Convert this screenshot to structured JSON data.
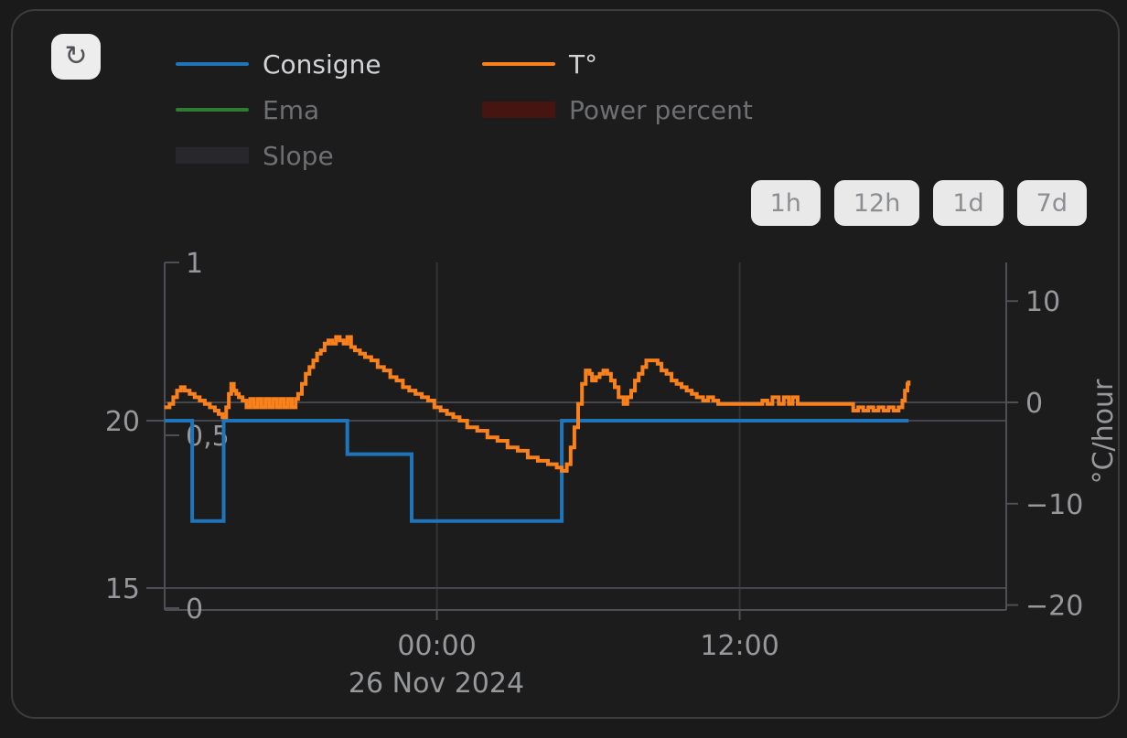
{
  "refresh": {
    "glyph": "↻"
  },
  "range_buttons": [
    "1h",
    "12h",
    "1d",
    "7d"
  ],
  "legend": {
    "columns": [
      [
        {
          "label": "Consigne",
          "marker": "line",
          "color": "#1f74ba",
          "active": true
        },
        {
          "label": "Ema",
          "marker": "line",
          "color": "#2e7d32",
          "active": false
        },
        {
          "label": "Slope",
          "marker": "box",
          "color": "#28282c",
          "active": false
        }
      ],
      [
        {
          "label": "T°",
          "marker": "line",
          "color": "#f8811c",
          "active": true
        },
        {
          "label": "Power percent",
          "marker": "box",
          "color": "#471511",
          "active": false
        }
      ]
    ]
  },
  "chart_data": {
    "type": "line",
    "title": "",
    "x_axis": {
      "unit": "hours relative to 26 Nov 2024 00:00",
      "range": [
        -10.8,
        22.6
      ],
      "ticks": [
        {
          "value": 0,
          "label": "00:00"
        },
        {
          "value": 12,
          "label": "12:00"
        }
      ],
      "date_label": "26 Nov 2024"
    },
    "y_axes": [
      {
        "id": "temperature",
        "side": "left-outer",
        "range": [
          14.3,
          24.7
        ],
        "ticks": [
          {
            "value": 20,
            "label": "20",
            "grid": true
          },
          {
            "value": 15,
            "label": "15",
            "grid": true
          }
        ]
      },
      {
        "id": "power",
        "side": "left-inner",
        "range": [
          0,
          1
        ],
        "ticks": [
          {
            "value": 1,
            "label": "1"
          },
          {
            "value": 0.5,
            "label": "0,5"
          },
          {
            "value": 0,
            "label": "0"
          }
        ]
      },
      {
        "id": "rate",
        "side": "right",
        "title": "°C/hour",
        "range": [
          -20.5,
          13.8
        ],
        "ticks": [
          {
            "value": 10,
            "label": "10"
          },
          {
            "value": 0,
            "label": "0",
            "grid": true
          },
          {
            "value": -10,
            "label": "−10"
          },
          {
            "value": -20,
            "label": "−20"
          }
        ]
      }
    ],
    "series": [
      {
        "name": "Consigne",
        "color": "#1f74ba",
        "axis": "temperature",
        "visible": true,
        "interpolation": "step-after",
        "points": [
          [
            -10.8,
            20
          ],
          [
            -9.7,
            17
          ],
          [
            -8.45,
            20
          ],
          [
            -3.55,
            19
          ],
          [
            -1.0,
            17
          ],
          [
            4.95,
            20
          ],
          [
            18.7,
            20
          ]
        ]
      },
      {
        "name": "T°",
        "color": "#f8811c",
        "axis": "temperature",
        "visible": true,
        "interpolation": "step-after",
        "points": [
          [
            -10.8,
            20.4
          ],
          [
            -10.6,
            20.5
          ],
          [
            -10.45,
            20.7
          ],
          [
            -10.3,
            20.9
          ],
          [
            -10.15,
            21.0
          ],
          [
            -10.0,
            20.9
          ],
          [
            -9.8,
            20.8
          ],
          [
            -9.6,
            20.7
          ],
          [
            -9.4,
            20.6
          ],
          [
            -9.2,
            20.5
          ],
          [
            -9.0,
            20.4
          ],
          [
            -8.8,
            20.3
          ],
          [
            -8.65,
            20.2
          ],
          [
            -8.5,
            20.1
          ],
          [
            -8.35,
            20.4
          ],
          [
            -8.25,
            20.8
          ],
          [
            -8.15,
            21.1
          ],
          [
            -8.05,
            20.9
          ],
          [
            -7.95,
            20.8
          ],
          [
            -7.85,
            20.7
          ],
          [
            -7.7,
            20.6
          ],
          [
            -7.55,
            20.4
          ],
          [
            -7.4,
            20.65
          ],
          [
            -7.25,
            20.4
          ],
          [
            -7.1,
            20.65
          ],
          [
            -6.95,
            20.4
          ],
          [
            -6.8,
            20.65
          ],
          [
            -6.65,
            20.4
          ],
          [
            -6.5,
            20.65
          ],
          [
            -6.35,
            20.4
          ],
          [
            -6.2,
            20.65
          ],
          [
            -6.05,
            20.4
          ],
          [
            -5.9,
            20.65
          ],
          [
            -5.75,
            20.4
          ],
          [
            -5.6,
            20.65
          ],
          [
            -5.5,
            20.8
          ],
          [
            -5.35,
            21.1
          ],
          [
            -5.2,
            21.4
          ],
          [
            -5.05,
            21.6
          ],
          [
            -4.9,
            21.8
          ],
          [
            -4.75,
            22.0
          ],
          [
            -4.6,
            22.1
          ],
          [
            -4.45,
            22.3
          ],
          [
            -4.3,
            22.4
          ],
          [
            -4.15,
            22.3
          ],
          [
            -4.0,
            22.5
          ],
          [
            -3.85,
            22.4
          ],
          [
            -3.7,
            22.3
          ],
          [
            -3.55,
            22.5
          ],
          [
            -3.4,
            22.2
          ],
          [
            -3.25,
            22.1
          ],
          [
            -3.05,
            22.0
          ],
          [
            -2.85,
            21.9
          ],
          [
            -2.6,
            21.8
          ],
          [
            -2.35,
            21.6
          ],
          [
            -2.1,
            21.5
          ],
          [
            -1.85,
            21.3
          ],
          [
            -1.6,
            21.2
          ],
          [
            -1.35,
            21.0
          ],
          [
            -1.1,
            20.9
          ],
          [
            -0.85,
            20.8
          ],
          [
            -0.6,
            20.7
          ],
          [
            -0.35,
            20.6
          ],
          [
            -0.1,
            20.4
          ],
          [
            0.15,
            20.3
          ],
          [
            0.4,
            20.2
          ],
          [
            0.65,
            20.1
          ],
          [
            0.9,
            20.0
          ],
          [
            1.2,
            19.8
          ],
          [
            1.6,
            19.7
          ],
          [
            2.0,
            19.5
          ],
          [
            2.4,
            19.4
          ],
          [
            2.8,
            19.2
          ],
          [
            3.2,
            19.1
          ],
          [
            3.6,
            18.9
          ],
          [
            4.0,
            18.8
          ],
          [
            4.4,
            18.7
          ],
          [
            4.75,
            18.6
          ],
          [
            4.95,
            18.5
          ],
          [
            5.15,
            18.7
          ],
          [
            5.3,
            19.2
          ],
          [
            5.45,
            19.8
          ],
          [
            5.6,
            20.5
          ],
          [
            5.75,
            21.1
          ],
          [
            5.9,
            21.5
          ],
          [
            6.05,
            21.4
          ],
          [
            6.15,
            21.2
          ],
          [
            6.3,
            21.3
          ],
          [
            6.45,
            21.4
          ],
          [
            6.6,
            21.5
          ],
          [
            6.75,
            21.4
          ],
          [
            6.9,
            21.2
          ],
          [
            7.05,
            21.0
          ],
          [
            7.2,
            20.7
          ],
          [
            7.4,
            20.5
          ],
          [
            7.55,
            20.7
          ],
          [
            7.7,
            20.9
          ],
          [
            7.85,
            21.2
          ],
          [
            8.0,
            21.4
          ],
          [
            8.15,
            21.6
          ],
          [
            8.3,
            21.8
          ],
          [
            8.6,
            21.8
          ],
          [
            8.75,
            21.7
          ],
          [
            8.9,
            21.5
          ],
          [
            9.1,
            21.4
          ],
          [
            9.3,
            21.2
          ],
          [
            9.5,
            21.1
          ],
          [
            9.7,
            21.0
          ],
          [
            9.9,
            20.9
          ],
          [
            10.1,
            20.8
          ],
          [
            10.3,
            20.7
          ],
          [
            10.55,
            20.6
          ],
          [
            10.75,
            20.7
          ],
          [
            10.95,
            20.6
          ],
          [
            11.15,
            20.5
          ],
          [
            12.9,
            20.6
          ],
          [
            13.1,
            20.5
          ],
          [
            13.3,
            20.7
          ],
          [
            13.55,
            20.5
          ],
          [
            13.75,
            20.7
          ],
          [
            13.95,
            20.5
          ],
          [
            14.1,
            20.7
          ],
          [
            14.3,
            20.5
          ],
          [
            16.5,
            20.3
          ],
          [
            16.7,
            20.4
          ],
          [
            16.9,
            20.3
          ],
          [
            17.1,
            20.4
          ],
          [
            17.3,
            20.3
          ],
          [
            17.5,
            20.4
          ],
          [
            17.7,
            20.3
          ],
          [
            17.9,
            20.4
          ],
          [
            18.1,
            20.3
          ],
          [
            18.3,
            20.4
          ],
          [
            18.45,
            20.6
          ],
          [
            18.55,
            20.9
          ],
          [
            18.65,
            21.1
          ],
          [
            18.7,
            21.2
          ]
        ]
      },
      {
        "name": "Ema",
        "color": "#2e7d32",
        "axis": "temperature",
        "visible": false,
        "points": []
      },
      {
        "name": "Power percent",
        "color": "#471511",
        "axis": "power",
        "visible": false,
        "points": []
      },
      {
        "name": "Slope",
        "color": "#28282c",
        "axis": "rate",
        "visible": false,
        "points": []
      }
    ]
  }
}
